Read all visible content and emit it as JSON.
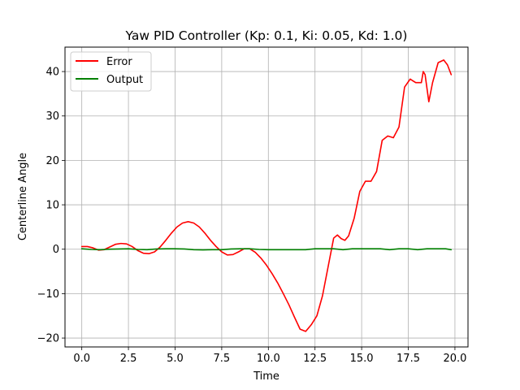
{
  "chart_data": {
    "type": "line",
    "title": "Yaw PID Controller (Kp: 0.1, Ki: 0.05, Kd: 1.0)",
    "xlabel": "Time",
    "ylabel": "Centerline Angle",
    "xlim": [
      -0.9,
      20.7
    ],
    "ylim": [
      -22.0,
      45.5
    ],
    "xticks": [
      0.0,
      2.5,
      5.0,
      7.5,
      10.0,
      12.5,
      15.0,
      17.5,
      20.0
    ],
    "xtick_labels": [
      "0.0",
      "2.5",
      "5.0",
      "7.5",
      "10.0",
      "12.5",
      "15.0",
      "17.5",
      "20.0"
    ],
    "yticks": [
      -20,
      -10,
      0,
      10,
      20,
      30,
      40
    ],
    "ytick_labels": [
      "−20",
      "−10",
      "0",
      "10",
      "20",
      "30",
      "40"
    ],
    "grid": true,
    "legend_position": "top-left",
    "series": [
      {
        "name": "Error",
        "color": "#ff0000",
        "x": [
          0.0,
          0.3,
          0.6,
          0.9,
          1.2,
          1.5,
          1.8,
          2.1,
          2.4,
          2.7,
          3.0,
          3.3,
          3.6,
          3.9,
          4.2,
          4.5,
          4.8,
          5.1,
          5.4,
          5.7,
          6.0,
          6.3,
          6.6,
          6.9,
          7.2,
          7.5,
          7.8,
          8.1,
          8.4,
          8.7,
          9.0,
          9.3,
          9.6,
          9.9,
          10.2,
          10.5,
          10.8,
          11.1,
          11.4,
          11.7,
          12.0,
          12.3,
          12.6,
          12.9,
          13.2,
          13.5,
          13.7,
          13.9,
          14.1,
          14.3,
          14.6,
          14.9,
          15.2,
          15.5,
          15.8,
          16.1,
          16.4,
          16.7,
          17.0,
          17.3,
          17.6,
          17.9,
          18.2,
          18.3,
          18.4,
          18.6,
          18.8,
          19.1,
          19.4,
          19.6,
          19.8
        ],
        "y": [
          0.6,
          0.6,
          0.3,
          -0.2,
          -0.1,
          0.5,
          1.1,
          1.3,
          1.2,
          0.6,
          -0.3,
          -0.9,
          -1.0,
          -0.6,
          0.5,
          2.0,
          3.6,
          5.0,
          5.9,
          6.2,
          5.9,
          5.0,
          3.6,
          2.0,
          0.6,
          -0.6,
          -1.3,
          -1.2,
          -0.6,
          0.1,
          0.1,
          -0.7,
          -2.0,
          -3.6,
          -5.5,
          -7.6,
          -10.0,
          -12.5,
          -15.3,
          -18.0,
          -18.5,
          -17.0,
          -15.0,
          -10.5,
          -4.0,
          2.5,
          3.2,
          2.4,
          2.0,
          3.0,
          7.0,
          13.0,
          15.3,
          15.3,
          17.5,
          24.5,
          25.5,
          25.1,
          27.5,
          36.5,
          38.3,
          37.5,
          37.5,
          40.0,
          39.3,
          33.2,
          37.5,
          42.0,
          42.6,
          41.5,
          39.3
        ]
      },
      {
        "name": "Output",
        "color": "#008000",
        "x": [
          0.0,
          0.5,
          1.0,
          1.5,
          2.0,
          2.5,
          3.0,
          3.5,
          4.0,
          4.5,
          5.0,
          5.5,
          6.0,
          6.5,
          7.0,
          7.5,
          8.0,
          8.5,
          9.0,
          9.5,
          10.0,
          10.5,
          11.0,
          11.5,
          12.0,
          12.5,
          13.0,
          13.5,
          14.0,
          14.5,
          15.0,
          15.5,
          16.0,
          16.5,
          17.0,
          17.5,
          18.0,
          18.5,
          19.0,
          19.5,
          19.8
        ],
        "y": [
          0.1,
          -0.05,
          -0.1,
          0.0,
          0.05,
          0.1,
          -0.05,
          -0.1,
          0.05,
          0.1,
          0.1,
          0.05,
          -0.1,
          -0.15,
          -0.1,
          -0.1,
          0.05,
          0.1,
          0.1,
          -0.05,
          -0.1,
          -0.1,
          -0.1,
          -0.1,
          -0.1,
          0.1,
          0.1,
          0.1,
          -0.1,
          0.1,
          0.1,
          0.1,
          0.1,
          -0.1,
          0.1,
          0.1,
          -0.1,
          0.1,
          0.1,
          0.1,
          -0.1
        ]
      }
    ]
  }
}
